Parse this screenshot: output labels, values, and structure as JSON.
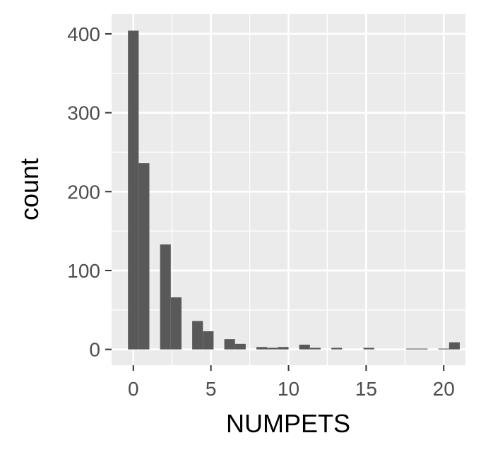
{
  "chart_data": {
    "type": "bar",
    "title": "",
    "xlabel": "NUMPETS",
    "ylabel": "count",
    "xlim": [
      -1.4,
      21.4
    ],
    "ylim": [
      -20,
      425
    ],
    "x_ticks": [
      0,
      5,
      10,
      15,
      20
    ],
    "y_ticks": [
      0,
      100,
      200,
      300,
      400
    ],
    "x_tick_labels": [
      "0",
      "5",
      "10",
      "15",
      "20"
    ],
    "y_tick_labels": [
      "0",
      "100",
      "200",
      "300",
      "400"
    ],
    "grid": true,
    "bins": [
      {
        "x0": -0.345,
        "x1": 0.345,
        "count": 404
      },
      {
        "x0": 0.345,
        "x1": 1.034,
        "count": 236
      },
      {
        "x0": 1.724,
        "x1": 2.414,
        "count": 133
      },
      {
        "x0": 2.414,
        "x1": 3.103,
        "count": 66
      },
      {
        "x0": 3.793,
        "x1": 4.483,
        "count": 36
      },
      {
        "x0": 4.483,
        "x1": 5.172,
        "count": 23
      },
      {
        "x0": 5.862,
        "x1": 6.552,
        "count": 13
      },
      {
        "x0": 6.552,
        "x1": 7.241,
        "count": 7
      },
      {
        "x0": 7.931,
        "x1": 8.621,
        "count": 3
      },
      {
        "x0": 8.621,
        "x1": 9.31,
        "count": 2
      },
      {
        "x0": 9.31,
        "x1": 10.0,
        "count": 3
      },
      {
        "x0": 10.69,
        "x1": 11.379,
        "count": 6
      },
      {
        "x0": 11.379,
        "x1": 12.069,
        "count": 2
      },
      {
        "x0": 12.759,
        "x1": 13.448,
        "count": 2
      },
      {
        "x0": 14.828,
        "x1": 15.517,
        "count": 2
      },
      {
        "x0": 17.586,
        "x1": 18.276,
        "count": 1
      },
      {
        "x0": 18.276,
        "x1": 18.966,
        "count": 1
      },
      {
        "x0": 19.655,
        "x1": 20.345,
        "count": 1
      },
      {
        "x0": 20.345,
        "x1": 21.034,
        "count": 9
      }
    ],
    "colors": {
      "panel_background": "#ebebeb",
      "grid_major": "#ffffff",
      "bar_fill": "#595959",
      "tick_label": "#4d4d4d",
      "tick_mark": "#333333",
      "axis_title": "#000000"
    }
  }
}
